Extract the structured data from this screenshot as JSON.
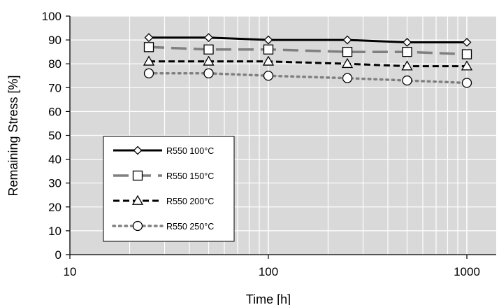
{
  "chart_data": {
    "type": "line",
    "xlabel": "Time [h]",
    "ylabel": "Remaining Stress [%]",
    "x_scale": "log",
    "xlim": [
      10,
      1200
    ],
    "ylim": [
      0,
      100
    ],
    "x_ticks": [
      10,
      100,
      1000
    ],
    "x_tick_labels": [
      "10",
      "100",
      "1000"
    ],
    "y_ticks": [
      0,
      10,
      20,
      30,
      40,
      50,
      60,
      70,
      80,
      90,
      100
    ],
    "y_tick_labels": [
      "0",
      "10",
      "20",
      "30",
      "40",
      "50",
      "60",
      "70",
      "80",
      "90",
      "100"
    ],
    "grid": true,
    "plot_background": "#d9d9d9",
    "legend_position": "lower-left",
    "x": [
      25,
      50,
      100,
      250,
      500,
      1000
    ],
    "series": [
      {
        "name": "R550 100°C",
        "values": [
          91,
          91,
          90,
          90,
          89,
          89
        ],
        "color": "#000000",
        "line_style": "solid",
        "marker": "diamond"
      },
      {
        "name": "R550 150°C",
        "values": [
          87,
          86,
          86,
          85,
          85,
          84
        ],
        "color": "#808080",
        "line_style": "long-dash",
        "marker": "square"
      },
      {
        "name": "R550 200°C",
        "values": [
          81,
          81,
          81,
          80,
          79,
          79
        ],
        "color": "#000000",
        "line_style": "dash",
        "marker": "triangle"
      },
      {
        "name": "R550 250°C",
        "values": [
          76,
          76,
          75,
          74,
          73,
          72
        ],
        "color": "#808080",
        "line_style": "dot",
        "marker": "circle"
      }
    ]
  }
}
